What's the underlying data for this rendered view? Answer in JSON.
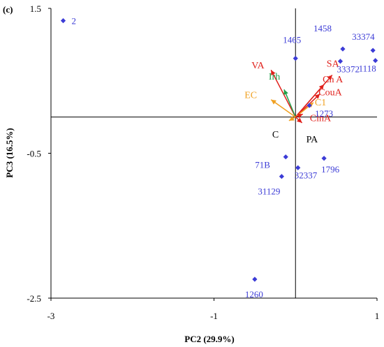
{
  "chart_data": {
    "type": "scatter",
    "panel_label": "(c)",
    "xlabel": "PC2 (29.9%)",
    "ylabel": "PC3 (16.5%)",
    "xlim": [
      -3,
      1
    ],
    "ylim": [
      -2.5,
      1.5
    ],
    "xticks": [
      -3,
      -1,
      1
    ],
    "yticks": [
      -2.5,
      -0.5,
      1.5
    ],
    "origin_lines": {
      "x": 0,
      "y": 0
    },
    "colors": {
      "points": "#3b3bd6",
      "arrow_red": "#e0201b",
      "arrow_green": "#22a04a",
      "arrow_orange": "#f0a020",
      "axis": "#000000"
    },
    "points": [
      {
        "label": "2",
        "x": -2.85,
        "y": 1.33
      },
      {
        "label": "1458",
        "x": 0.58,
        "y": 0.94
      },
      {
        "label": "33374",
        "x": 0.95,
        "y": 0.92
      },
      {
        "label": "1465",
        "x": 0.0,
        "y": 0.81
      },
      {
        "label": "1118",
        "x": 0.98,
        "y": 0.78
      },
      {
        "label": "33372",
        "x": 0.55,
        "y": 0.77
      },
      {
        "label": "1273",
        "x": 0.17,
        "y": 0.16
      },
      {
        "label": "71B",
        "x": -0.12,
        "y": -0.55
      },
      {
        "label": "1796",
        "x": 0.35,
        "y": -0.57
      },
      {
        "label": "32337",
        "x": 0.03,
        "y": -0.7
      },
      {
        "label": "31129",
        "x": -0.17,
        "y": -0.82
      },
      {
        "label": "1260",
        "x": -0.5,
        "y": -2.24
      }
    ],
    "vectors": [
      {
        "label": "VA",
        "x": -0.3,
        "y": 0.65,
        "color": "red"
      },
      {
        "label": "Irh",
        "x": -0.14,
        "y": 0.38,
        "color": "green"
      },
      {
        "label": "EC",
        "x": -0.3,
        "y": 0.24,
        "color": "orange"
      },
      {
        "label": "SA",
        "x": 0.45,
        "y": 0.58,
        "color": "red"
      },
      {
        "label": "Ch A",
        "x": 0.35,
        "y": 0.45,
        "color": "red"
      },
      {
        "label": "CouA",
        "x": 0.3,
        "y": 0.32,
        "color": "red"
      },
      {
        "label": "C1",
        "x": 0.22,
        "y": 0.2,
        "color": "orange"
      },
      {
        "label": "CinA",
        "x": 0.09,
        "y": 0.04,
        "color": "red"
      },
      {
        "label": "C",
        "x": -0.08,
        "y": -0.05,
        "color": "orange"
      },
      {
        "label": "PA",
        "x": 0.08,
        "y": -0.08,
        "color": "red"
      }
    ]
  }
}
